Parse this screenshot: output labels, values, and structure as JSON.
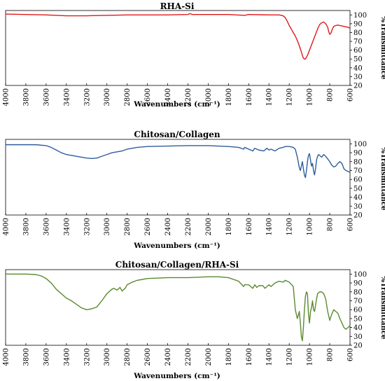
{
  "chart_data": [
    {
      "type": "line",
      "title": "RHA-Si",
      "xlabel": "Wavenumbers (cm⁻¹)",
      "ylabel": "%Transmittance",
      "xlim": [
        4000,
        600
      ],
      "ylim": [
        20,
        105
      ],
      "x_ticks": [
        "4000",
        "3800",
        "3600",
        "3400",
        "3200",
        "3000",
        "2800",
        "2600",
        "2400",
        "2200",
        "2000",
        "1800",
        "1600",
        "1400",
        "1200",
        "1000",
        "800",
        "600"
      ],
      "y_ticks": [
        "20",
        "30",
        "40",
        "50",
        "60",
        "70",
        "80",
        "90",
        "100"
      ],
      "color": "#e0191b",
      "series": [
        {
          "x": [
            4000,
            3800,
            3600,
            3400,
            3200,
            3000,
            2800,
            2600,
            2400,
            2200,
            2180,
            2160,
            2000,
            1800,
            1640,
            1600,
            1400,
            1300,
            1260,
            1240,
            1220,
            1200,
            1180,
            1160,
            1140,
            1120,
            1100,
            1080,
            1070,
            1060,
            1050,
            1040,
            1020,
            1000,
            980,
            960,
            940,
            920,
            900,
            880,
            860,
            840,
            820,
            810,
            800,
            790,
            780,
            770,
            760,
            740,
            720,
            700,
            680,
            660,
            640,
            620,
            600
          ],
          "y": [
            101,
            100.5,
            100,
            99,
            99,
            99.5,
            100,
            100,
            100,
            100.5,
            101.5,
            100.5,
            100.5,
            100.5,
            99.5,
            100.5,
            100,
            100,
            99,
            97,
            93,
            88,
            84,
            80,
            76,
            71,
            65,
            58,
            54,
            51,
            50,
            50,
            54,
            60,
            66,
            72,
            78,
            84,
            89,
            91,
            92,
            90,
            86,
            81,
            78,
            79,
            82,
            85,
            87,
            88,
            88.5,
            88,
            87.5,
            87,
            86.5,
            86,
            85
          ]
        }
      ]
    },
    {
      "type": "line",
      "title": "Chitosan/Collagen",
      "xlabel": "Wavenumbers (cm⁻¹)",
      "ylabel": "%Transmittance",
      "xlim": [
        4000,
        600
      ],
      "ylim": [
        20,
        105
      ],
      "x_ticks": [
        "4000",
        "3800",
        "3600",
        "3400",
        "3200",
        "3000",
        "2800",
        "2600",
        "2400",
        "2200",
        "2000",
        "1800",
        "1600",
        "1400",
        "1200",
        "1000",
        "800",
        "600"
      ],
      "y_ticks": [
        "20",
        "30",
        "40",
        "50",
        "60",
        "70",
        "80",
        "90",
        "100"
      ],
      "color": "#2f5d9c",
      "series": [
        {
          "x": [
            4000,
            3800,
            3700,
            3600,
            3550,
            3500,
            3450,
            3400,
            3300,
            3200,
            3150,
            3100,
            3050,
            3000,
            2950,
            2900,
            2850,
            2800,
            2700,
            2600,
            2400,
            2200,
            2000,
            1900,
            1800,
            1700,
            1650,
            1640,
            1600,
            1560,
            1540,
            1500,
            1450,
            1420,
            1400,
            1380,
            1340,
            1300,
            1260,
            1240,
            1200,
            1160,
            1140,
            1120,
            1100,
            1090,
            1080,
            1070,
            1060,
            1050,
            1040,
            1030,
            1020,
            1010,
            1000,
            990,
            980,
            970,
            960,
            950,
            940,
            930,
            920,
            910,
            900,
            880,
            860,
            840,
            820,
            800,
            780,
            760,
            740,
            720,
            700,
            680,
            660,
            640,
            620,
            600
          ],
          "y": [
            99,
            99,
            99,
            98,
            96,
            93,
            90,
            88,
            86,
            84,
            83.5,
            84,
            86,
            88,
            90,
            91,
            92,
            94,
            96,
            97,
            97.5,
            98,
            98,
            97.5,
            97,
            96,
            94,
            96,
            94,
            92,
            95,
            93,
            92,
            95,
            93,
            94,
            92,
            95,
            96,
            97,
            97,
            96,
            94,
            85,
            73,
            70,
            75,
            80,
            72,
            65,
            62,
            70,
            80,
            87,
            89,
            82,
            75,
            78,
            70,
            65,
            72,
            82,
            86,
            88,
            87,
            85,
            88,
            86,
            83,
            80,
            76,
            74,
            75,
            78,
            80,
            78,
            72,
            70,
            69,
            68
          ]
        }
      ]
    },
    {
      "type": "line",
      "title": "Chitosan/Collagen/RHA-Si",
      "xlabel": "Wavenumbers (cm⁻¹)",
      "ylabel": "%Transmittance",
      "xlim": [
        4000,
        600
      ],
      "ylim": [
        20,
        105
      ],
      "x_ticks": [
        "4000",
        "3800",
        "3600",
        "3400",
        "3200",
        "3000",
        "2800",
        "2600",
        "2400",
        "2200",
        "2000",
        "1800",
        "1600",
        "1400",
        "1200",
        "1000",
        "800",
        "600"
      ],
      "y_ticks": [
        "20",
        "30",
        "40",
        "50",
        "60",
        "70",
        "80",
        "90",
        "100"
      ],
      "color": "#5a8a2e",
      "series": [
        {
          "x": [
            4000,
            3900,
            3800,
            3700,
            3650,
            3600,
            3550,
            3500,
            3450,
            3400,
            3350,
            3300,
            3250,
            3200,
            3150,
            3100,
            3050,
            3000,
            2950,
            2930,
            2900,
            2870,
            2850,
            2820,
            2800,
            2750,
            2700,
            2600,
            2400,
            2200,
            2000,
            1900,
            1800,
            1700,
            1650,
            1640,
            1600,
            1560,
            1540,
            1520,
            1500,
            1460,
            1440,
            1420,
            1400,
            1380,
            1340,
            1300,
            1260,
            1240,
            1200,
            1160,
            1140,
            1120,
            1100,
            1090,
            1080,
            1070,
            1060,
            1050,
            1040,
            1030,
            1020,
            1010,
            1000,
            990,
            980,
            970,
            960,
            950,
            940,
            930,
            920,
            900,
            880,
            860,
            840,
            820,
            800,
            780,
            760,
            740,
            720,
            700,
            680,
            660,
            640,
            620,
            600
          ],
          "y": [
            100,
            100,
            100,
            99.5,
            98,
            95,
            90,
            83,
            78,
            73,
            70,
            66,
            62,
            60,
            61,
            63,
            70,
            78,
            83,
            84,
            82,
            85,
            81,
            84,
            88,
            91,
            93,
            95,
            96,
            96,
            97,
            97,
            96,
            92,
            86,
            88,
            88,
            84,
            88,
            85,
            87,
            87,
            84,
            86,
            88,
            86,
            90,
            92,
            91,
            93,
            91,
            86,
            60,
            50,
            58,
            45,
            30,
            25,
            40,
            60,
            75,
            80,
            78,
            55,
            45,
            58,
            62,
            70,
            60,
            58,
            65,
            72,
            78,
            80,
            80,
            78,
            72,
            58,
            48,
            55,
            60,
            58,
            56,
            50,
            45,
            40,
            38,
            40,
            42
          ]
        }
      ]
    }
  ]
}
